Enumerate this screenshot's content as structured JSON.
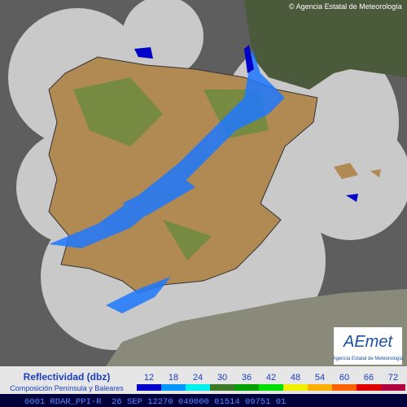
{
  "header": {
    "copyright": "© Agencia Estatal de Meteorología"
  },
  "logo": {
    "brand": "AEmet",
    "caption": "Agencia Estatal de Meteorología"
  },
  "legend": {
    "title": "Reflectividad (dbz)",
    "subtitle": "Composición Península y Baleares",
    "items": [
      {
        "value": 12,
        "color": "#0000c8"
      },
      {
        "value": 18,
        "color": "#0096ff"
      },
      {
        "value": 24,
        "color": "#00f0f0"
      },
      {
        "value": 30,
        "color": "#3c7a2a"
      },
      {
        "value": 36,
        "color": "#00a000"
      },
      {
        "value": 42,
        "color": "#00e000"
      },
      {
        "value": 48,
        "color": "#f0f000"
      },
      {
        "value": 54,
        "color": "#ffb000"
      },
      {
        "value": 60,
        "color": "#ff6000"
      },
      {
        "value": 66,
        "color": "#e00000"
      },
      {
        "value": 72,
        "color": "#b00040"
      }
    ]
  },
  "footer": {
    "code": "0001 RDAR_PPI-R  26 SEP 12270 040000 01514 09751 01"
  }
}
